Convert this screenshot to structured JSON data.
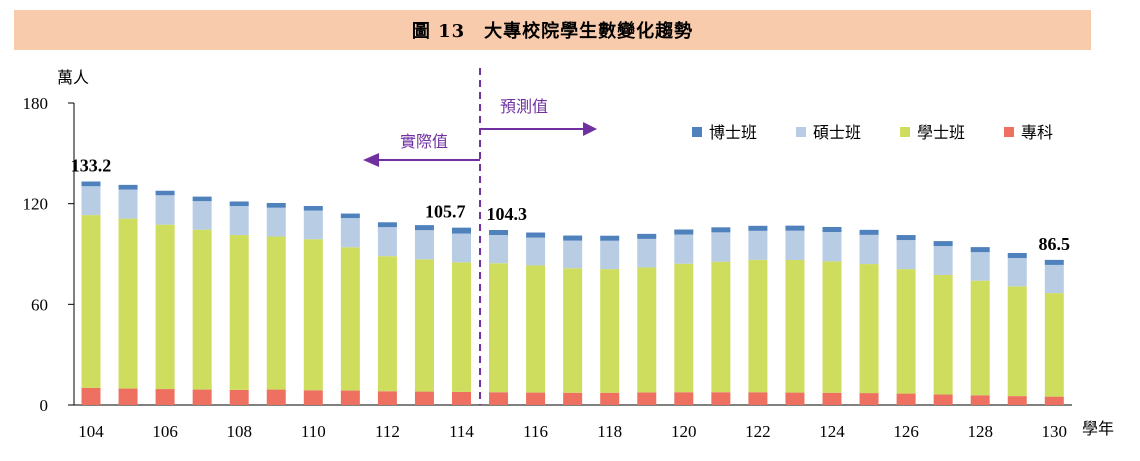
{
  "title": "圖 13　大專校院學生數變化趨勢",
  "colors": {
    "title_bg": "#f8cbad",
    "phase": "#7030a0"
  },
  "chart_data": {
    "type": "bar",
    "stacked": true,
    "ylabel": "萬人",
    "xlabel": "學年",
    "ylim": [
      0,
      180
    ],
    "yticks": [
      0,
      60,
      120,
      180
    ],
    "xticks": [
      104,
      106,
      108,
      110,
      112,
      114,
      116,
      118,
      120,
      122,
      124,
      126,
      128,
      130
    ],
    "categories": [
      104,
      105,
      106,
      107,
      108,
      109,
      110,
      111,
      112,
      113,
      114,
      115,
      116,
      117,
      118,
      119,
      120,
      121,
      122,
      123,
      124,
      125,
      126,
      127,
      128,
      129,
      130
    ],
    "legend_position": "top-right",
    "series": [
      {
        "name": "專科",
        "color": "#ed7060",
        "values": [
          10.2,
          9.8,
          9.5,
          9.2,
          9.0,
          9.2,
          8.8,
          8.6,
          8.2,
          8.0,
          7.8,
          7.6,
          7.4,
          7.3,
          7.3,
          7.5,
          7.6,
          7.6,
          7.6,
          7.4,
          7.3,
          7.1,
          6.8,
          6.3,
          5.8,
          5.3,
          5.0
        ]
      },
      {
        "name": "學士班",
        "color": "#cfdd5e",
        "values": [
          103.0,
          101.3,
          98.0,
          95.3,
          92.3,
          91.2,
          90.0,
          85.4,
          80.5,
          78.8,
          77.2,
          76.9,
          75.8,
          74.2,
          73.7,
          74.5,
          76.6,
          77.8,
          78.9,
          79.0,
          78.3,
          76.9,
          74.2,
          71.2,
          68.3,
          65.4,
          61.7
        ]
      },
      {
        "name": "碩士班",
        "color": "#b8cce4",
        "values": [
          17.2,
          17.3,
          17.5,
          17.0,
          17.3,
          17.2,
          17.1,
          17.4,
          17.3,
          17.4,
          17.2,
          16.8,
          16.6,
          16.5,
          16.9,
          17.0,
          17.4,
          17.5,
          17.3,
          17.5,
          17.5,
          17.4,
          17.3,
          17.2,
          17.0,
          16.9,
          16.8
        ]
      },
      {
        "name": "博士班",
        "color": "#4f81bd",
        "values": [
          2.8,
          2.8,
          2.7,
          2.7,
          2.7,
          2.8,
          2.7,
          2.7,
          2.9,
          3.0,
          3.5,
          3.0,
          3.0,
          3.0,
          3.0,
          3.0,
          3.0,
          3.0,
          3.0,
          3.0,
          3.0,
          3.0,
          3.0,
          3.0,
          3.0,
          3.0,
          3.0
        ]
      }
    ],
    "annotations": [
      {
        "label": "133.2",
        "x": 104
      },
      {
        "label": "105.7",
        "x": 114
      },
      {
        "label": "104.3",
        "x": 115
      },
      {
        "label": "86.5",
        "x": 130
      }
    ],
    "divider_after": 114,
    "actual_label": "實際值",
    "forecast_label": "預測值"
  }
}
